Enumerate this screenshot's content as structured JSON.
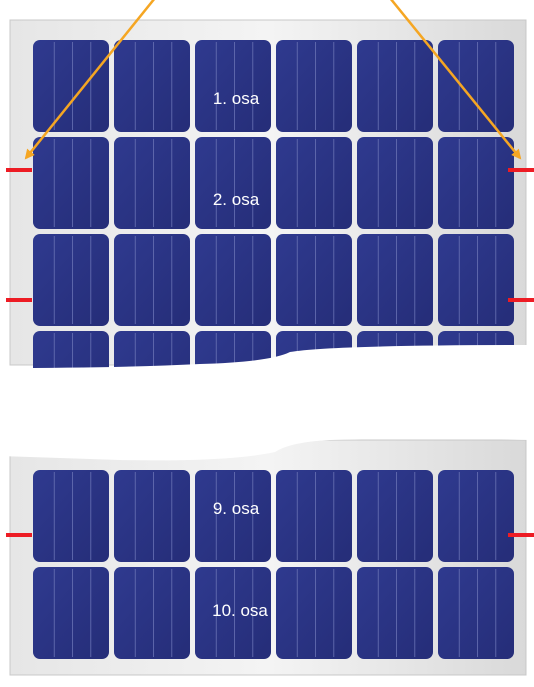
{
  "segments": [
    {
      "label": "1. osa"
    },
    {
      "label": "2. osa"
    },
    {
      "label": "9. osa"
    },
    {
      "label": "10. osa"
    }
  ],
  "colors": {
    "cell": "#2b3585",
    "cell_light": "#3a4598",
    "frame": "#d4d4d4",
    "rail": "#ed1c24",
    "arrow": "#f5a623",
    "gap": "#ffffff"
  }
}
